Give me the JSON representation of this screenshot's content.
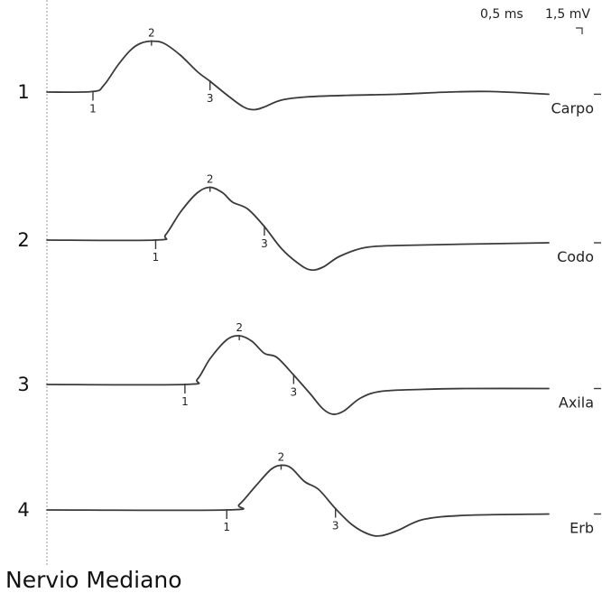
{
  "chart_data": {
    "type": "line",
    "title": "Nervio Mediano",
    "scale": {
      "time": "0,5 ms",
      "amplitude": "1,5 mV"
    },
    "x_range": [
      0,
      6.0
    ],
    "y_range": [
      -1.0,
      3.0
    ],
    "series": [
      {
        "row": "1",
        "site": "Carpo",
        "marks": [
          {
            "label": "1",
            "x": 0.55
          },
          {
            "label": "2",
            "x": 1.25
          },
          {
            "label": "3",
            "x": 1.95
          }
        ],
        "points": [
          [
            0,
            0
          ],
          [
            0.55,
            0.02
          ],
          [
            0.68,
            0.25
          ],
          [
            0.85,
            1.0
          ],
          [
            1.0,
            1.55
          ],
          [
            1.12,
            1.8
          ],
          [
            1.25,
            1.88
          ],
          [
            1.4,
            1.8
          ],
          [
            1.6,
            1.35
          ],
          [
            1.8,
            0.75
          ],
          [
            1.95,
            0.4
          ],
          [
            2.15,
            -0.1
          ],
          [
            2.35,
            -0.55
          ],
          [
            2.48,
            -0.65
          ],
          [
            2.6,
            -0.55
          ],
          [
            2.8,
            -0.3
          ],
          [
            3.1,
            -0.18
          ],
          [
            3.6,
            -0.12
          ],
          [
            4.2,
            -0.08
          ],
          [
            4.8,
            0.0
          ],
          [
            5.3,
            0.02
          ],
          [
            6.0,
            -0.08
          ]
        ]
      },
      {
        "row": "2",
        "site": "Codo",
        "marks": [
          {
            "label": "1",
            "x": 1.3
          },
          {
            "label": "2",
            "x": 1.95
          },
          {
            "label": "3",
            "x": 2.6
          }
        ],
        "points": [
          [
            0,
            0
          ],
          [
            1.3,
            0.0
          ],
          [
            1.42,
            0.2
          ],
          [
            1.6,
            1.05
          ],
          [
            1.8,
            1.75
          ],
          [
            1.95,
            1.95
          ],
          [
            2.1,
            1.75
          ],
          [
            2.22,
            1.4
          ],
          [
            2.4,
            1.15
          ],
          [
            2.6,
            0.5
          ],
          [
            2.8,
            -0.3
          ],
          [
            3.0,
            -0.85
          ],
          [
            3.15,
            -1.1
          ],
          [
            3.3,
            -1.0
          ],
          [
            3.5,
            -0.6
          ],
          [
            3.8,
            -0.28
          ],
          [
            4.2,
            -0.2
          ],
          [
            5.0,
            -0.15
          ],
          [
            6.0,
            -0.1
          ]
        ]
      },
      {
        "row": "3",
        "site": "Axila",
        "marks": [
          {
            "label": "1",
            "x": 1.65
          },
          {
            "label": "2",
            "x": 2.3
          },
          {
            "label": "3",
            "x": 2.95
          }
        ],
        "points": [
          [
            0,
            0
          ],
          [
            1.65,
            0.0
          ],
          [
            1.8,
            0.2
          ],
          [
            1.95,
            0.95
          ],
          [
            2.15,
            1.65
          ],
          [
            2.3,
            1.8
          ],
          [
            2.45,
            1.6
          ],
          [
            2.6,
            1.15
          ],
          [
            2.75,
            1.0
          ],
          [
            2.95,
            0.35
          ],
          [
            3.15,
            -0.35
          ],
          [
            3.3,
            -0.9
          ],
          [
            3.42,
            -1.1
          ],
          [
            3.55,
            -0.98
          ],
          [
            3.75,
            -0.5
          ],
          [
            4.0,
            -0.25
          ],
          [
            4.5,
            -0.18
          ],
          [
            5.0,
            -0.15
          ],
          [
            6.0,
            -0.15
          ]
        ]
      },
      {
        "row": "4",
        "site": "Erb",
        "marks": [
          {
            "label": "1",
            "x": 2.15
          },
          {
            "label": "2",
            "x": 2.8
          },
          {
            "label": "3",
            "x": 3.45
          }
        ],
        "points": [
          [
            0,
            0
          ],
          [
            2.15,
            0.0
          ],
          [
            2.3,
            0.2
          ],
          [
            2.5,
            0.9
          ],
          [
            2.68,
            1.5
          ],
          [
            2.8,
            1.65
          ],
          [
            2.92,
            1.55
          ],
          [
            3.08,
            1.05
          ],
          [
            3.25,
            0.75
          ],
          [
            3.45,
            0.05
          ],
          [
            3.65,
            -0.55
          ],
          [
            3.85,
            -0.9
          ],
          [
            4.0,
            -0.95
          ],
          [
            4.2,
            -0.75
          ],
          [
            4.5,
            -0.35
          ],
          [
            5.0,
            -0.2
          ],
          [
            6.0,
            -0.15
          ]
        ]
      }
    ]
  }
}
